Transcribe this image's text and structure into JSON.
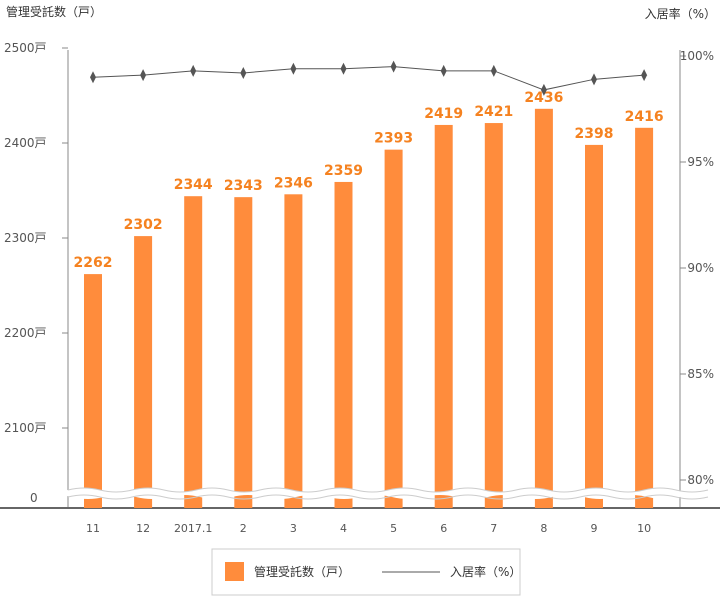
{
  "chart_data": {
    "type": "bar",
    "categories": [
      "11",
      "12",
      "2017.1",
      "2",
      "3",
      "4",
      "5",
      "6",
      "7",
      "8",
      "9",
      "10"
    ],
    "series": [
      {
        "name": "管理受託数（戸）",
        "type": "bar",
        "axis": "left",
        "color": "#ff8c3c",
        "values": [
          2262,
          2302,
          2344,
          2343,
          2346,
          2359,
          2393,
          2419,
          2421,
          2436,
          2398,
          2416
        ]
      },
      {
        "name": "入居率（%）",
        "type": "line",
        "axis": "right",
        "color": "#555555",
        "values": [
          99.0,
          99.1,
          99.3,
          99.2,
          99.4,
          99.4,
          99.5,
          99.3,
          99.3,
          98.4,
          98.9,
          99.1
        ]
      }
    ],
    "left_axis": {
      "title": "管理受託数（戸）",
      "ylim": [
        2000,
        2500
      ],
      "ticks": [
        "2500戸",
        "2400戸",
        "2300戸",
        "2200戸",
        "2100戸"
      ],
      "tick_values": [
        2500,
        2400,
        2300,
        2200,
        2100
      ],
      "zero_label": "0",
      "broken": true
    },
    "right_axis": {
      "title": "入居率（%）",
      "ylim": [
        80,
        100
      ],
      "ticks": [
        "100%",
        "95%",
        "90%",
        "85%",
        "80%"
      ],
      "tick_values": [
        100,
        95,
        90,
        85,
        80
      ],
      "broken": true
    },
    "grid": false,
    "legend": {
      "position": "bottom",
      "items": [
        "管理受託数（戸）",
        "入居率（%）"
      ]
    }
  }
}
